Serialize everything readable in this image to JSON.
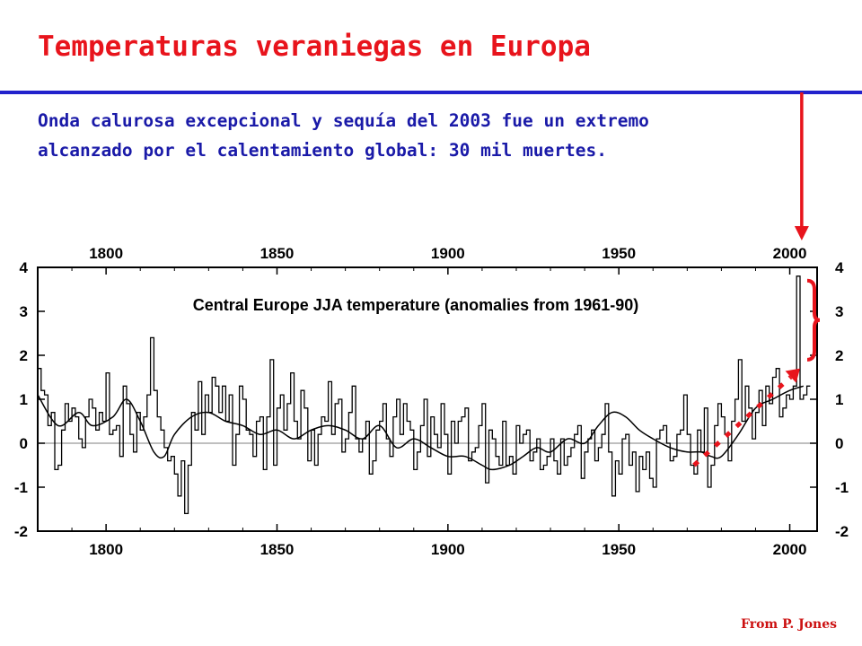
{
  "slide": {
    "title": "Temperaturas veraniegas en Europa",
    "subtitle_lines": [
      "Onda calurosa excepcional y sequía del 2003 fue un extremo",
      "alcanzado por el calentamiento global: 30 mil muertes."
    ],
    "credit": "From P.  Jones"
  },
  "colors": {
    "title": "#e8141c",
    "subtitle": "#1a1aa8",
    "rule": "#2222cc",
    "annotation": "#e8141c",
    "series": "#000000",
    "zero_line": "#999999"
  },
  "chart_data": {
    "type": "line",
    "title": "Central Europe JJA temperature (anomalies from 1961-90)",
    "xlim": [
      1780,
      2008
    ],
    "ylim": [
      -2,
      4
    ],
    "x_ticks": [
      1800,
      1850,
      1900,
      1950,
      2000
    ],
    "x_tick_labels": [
      "1800",
      "1850",
      "1900",
      "1950",
      "2000"
    ],
    "y_ticks": [
      4,
      3,
      2,
      1,
      0,
      -1,
      -2
    ],
    "y_tick_labels": [
      "4",
      "3",
      "2",
      "1",
      "0",
      "-1",
      "-2"
    ],
    "zero_line": true,
    "grid": false,
    "series": [
      {
        "style": "step",
        "x_start": 1780,
        "values": [
          1.7,
          1.2,
          1.1,
          0.4,
          0.7,
          -0.6,
          -0.5,
          0.3,
          0.9,
          0.5,
          0.8,
          0.6,
          0.1,
          -0.1,
          0.6,
          1.0,
          0.8,
          0.3,
          0.7,
          0.5,
          1.6,
          0.2,
          0.3,
          0.4,
          -0.3,
          1.3,
          0.9,
          0.2,
          -0.2,
          0.7,
          0.3,
          0.6,
          1.1,
          2.4,
          1.2,
          0.6,
          0.3,
          -0.1,
          -0.4,
          -0.3,
          -0.7,
          -1.2,
          -0.4,
          -1.6,
          -0.5,
          0.7,
          0.3,
          1.4,
          0.2,
          1.1,
          0.7,
          1.5,
          1.3,
          0.7,
          1.3,
          0.5,
          1.1,
          -0.5,
          0.2,
          1.3,
          1.0,
          0.3,
          0.2,
          -0.3,
          0.5,
          0.6,
          -0.6,
          0.6,
          1.9,
          -0.5,
          0.8,
          1.1,
          0.3,
          0.9,
          1.6,
          0.5,
          0.1,
          1.2,
          0.8,
          -0.4,
          0.3,
          -0.5,
          0.2,
          0.6,
          0.5,
          1.4,
          0.2,
          0.9,
          1.0,
          -0.2,
          0.1,
          0.7,
          1.3,
          0.1,
          -0.2,
          0.1,
          0.5,
          -0.7,
          -0.4,
          0.3,
          0.5,
          0.9,
          0.1,
          -0.3,
          0.6,
          1.0,
          0.2,
          0.9,
          0.5,
          0.3,
          -0.6,
          -0.2,
          0.4,
          1.0,
          -0.3,
          0.6,
          0.2,
          -0.1,
          0.9,
          0.2,
          -0.7,
          0.5,
          0.0,
          0.5,
          0.6,
          0.8,
          -0.4,
          -0.2,
          -0.1,
          0.4,
          0.9,
          -0.9,
          0.3,
          0.1,
          -0.3,
          -0.5,
          0.5,
          -0.5,
          -0.3,
          -0.7,
          0.4,
          0.0,
          0.2,
          0.3,
          -0.4,
          -0.2,
          0.1,
          -0.6,
          -0.5,
          -0.3,
          0.1,
          -0.4,
          -0.7,
          0.1,
          -0.5,
          -0.3,
          -0.1,
          0.2,
          0.4,
          -0.8,
          -0.2,
          0.1,
          0.3,
          -0.4,
          -0.1,
          0.2,
          0.9,
          -0.2,
          -1.2,
          -0.4,
          -0.7,
          0.1,
          0.2,
          -0.5,
          -0.2,
          -1.1,
          -0.3,
          -0.6,
          -0.2,
          -0.8,
          -1.0,
          0.1,
          0.3,
          0.4,
          0.0,
          -0.4,
          -0.3,
          0.2,
          0.3,
          1.1,
          0.2,
          -0.5,
          -0.7,
          0.3,
          -0.2,
          0.8,
          -1.0,
          -0.5,
          0.4,
          0.9,
          0.6,
          0.2,
          -0.4,
          0.5,
          1.0,
          1.9,
          0.5,
          1.3,
          0.8,
          0.1,
          0.7,
          1.2,
          0.4,
          1.3,
          0.9,
          1.5,
          1.7,
          0.6,
          0.8,
          1.1,
          1.0,
          1.3,
          3.8,
          1.0,
          1.1,
          1.3
        ]
      },
      {
        "style": "smooth",
        "x": [
          1780,
          1786,
          1792,
          1796,
          1802,
          1806,
          1810,
          1814,
          1817,
          1820,
          1825,
          1830,
          1835,
          1840,
          1845,
          1850,
          1855,
          1860,
          1865,
          1870,
          1875,
          1880,
          1885,
          1890,
          1895,
          1900,
          1905,
          1910,
          1913,
          1918,
          1922,
          1926,
          1930,
          1935,
          1940,
          1944,
          1948,
          1952,
          1956,
          1960,
          1965,
          1970,
          1974,
          1977,
          1980,
          1985,
          1990,
          1995,
          2000,
          2004
        ],
        "y": [
          1.1,
          0.4,
          0.7,
          0.4,
          0.6,
          1.0,
          0.5,
          -0.2,
          -0.3,
          0.2,
          0.6,
          0.7,
          0.5,
          0.4,
          0.2,
          0.3,
          0.1,
          0.3,
          0.4,
          0.3,
          0.1,
          0.4,
          -0.1,
          0.1,
          -0.1,
          -0.3,
          -0.3,
          -0.5,
          -0.6,
          -0.5,
          -0.3,
          -0.1,
          -0.2,
          0.1,
          0.0,
          0.4,
          0.7,
          0.6,
          0.3,
          0.1,
          -0.1,
          -0.2,
          -0.2,
          -0.3,
          -0.3,
          0.2,
          0.8,
          1.0,
          1.2,
          1.3
        ]
      }
    ],
    "annotations": {
      "arrow_year": 2003,
      "trend_line": {
        "x": [
          1972,
          2003
        ],
        "y": [
          -0.5,
          1.7
        ]
      },
      "brace_range": [
        1.9,
        3.7
      ]
    }
  }
}
